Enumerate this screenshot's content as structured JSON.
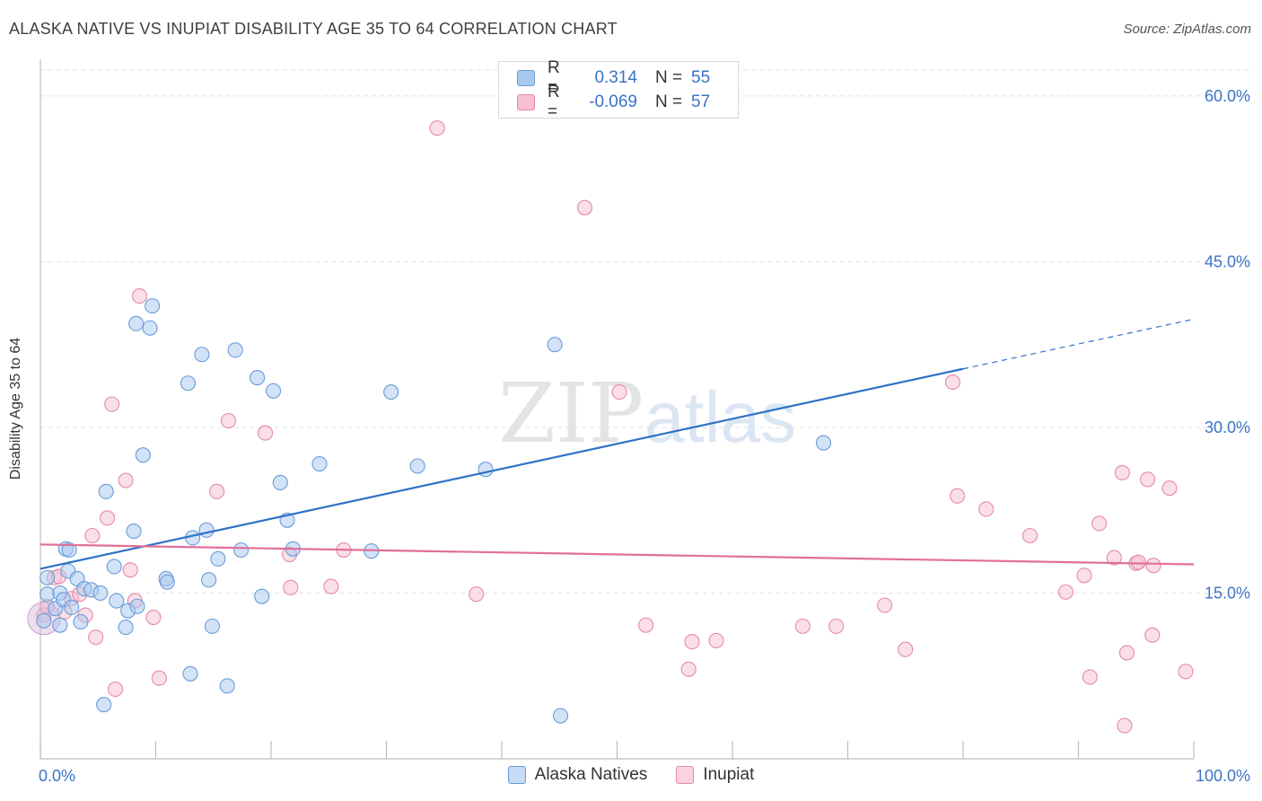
{
  "title": "ALASKA NATIVE VS INUPIAT DISABILITY AGE 35 TO 64 CORRELATION CHART",
  "source": "Source: ZipAtlas.com",
  "watermark": {
    "part1": "ZIP",
    "part2": "atlas"
  },
  "legend_box": {
    "rows": [
      {
        "r_label": "R =",
        "r_value": "0.314",
        "n_label": "N =",
        "n_value": "55",
        "color": "#a8c8f0",
        "border": "#6a9bd8"
      },
      {
        "r_label": "R =",
        "r_value": "-0.069",
        "n_label": "N =",
        "n_value": "57",
        "color": "#f8c0d0",
        "border": "#e48aa6"
      }
    ]
  },
  "bottom_legend": [
    {
      "label": "Alaska Natives",
      "color": "#a8c8f0",
      "border": "#6a9bd8"
    },
    {
      "label": "Inupiat",
      "color": "#f8c0d0",
      "border": "#e48aa6"
    }
  ],
  "chart_data": {
    "type": "scatter",
    "title": "ALASKA NATIVE VS INUPIAT DISABILITY AGE 35 TO 64 CORRELATION CHART",
    "xlabel": "",
    "ylabel": "Disability Age 35 to 64",
    "xlim": [
      0,
      100
    ],
    "ylim": [
      0,
      63
    ],
    "x_tick_labels": [
      {
        "value": 0,
        "label": "0.0%"
      },
      {
        "value": 100,
        "label": "100.0%"
      }
    ],
    "y_tick_labels": [
      {
        "value": 15,
        "label": "15.0%"
      },
      {
        "value": 30,
        "label": "30.0%"
      },
      {
        "value": 45,
        "label": "45.0%"
      },
      {
        "value": 60,
        "label": "60.0%"
      }
    ],
    "grid": "horizontal dashed",
    "series": [
      {
        "name": "Alaska Natives",
        "color": "#a8c8f0",
        "stroke": "#6a9bd8",
        "line_color": "#2e72c8",
        "trend": {
          "x0": 0,
          "y0": 17.2,
          "x1": 80,
          "y1": 35.3,
          "dash_to_x": 100,
          "dash_to_y": 39.8
        },
        "points": [
          [
            0.6,
            16.4
          ],
          [
            0.6,
            14.9
          ],
          [
            1.3,
            13.6
          ],
          [
            1.7,
            12.1
          ],
          [
            1.7,
            15.0
          ],
          [
            2.0,
            14.4
          ],
          [
            2.2,
            19.0
          ],
          [
            2.4,
            17.0
          ],
          [
            2.5,
            18.9
          ],
          [
            2.7,
            13.7
          ],
          [
            3.2,
            16.3
          ],
          [
            3.5,
            12.4
          ],
          [
            3.8,
            15.4
          ],
          [
            4.4,
            15.3
          ],
          [
            5.2,
            15.0
          ],
          [
            5.5,
            4.9
          ],
          [
            5.7,
            24.2
          ],
          [
            6.4,
            17.4
          ],
          [
            6.6,
            14.3
          ],
          [
            7.4,
            11.9
          ],
          [
            7.6,
            13.4
          ],
          [
            8.1,
            20.6
          ],
          [
            8.3,
            39.4
          ],
          [
            8.4,
            13.8
          ],
          [
            8.9,
            27.5
          ],
          [
            9.5,
            39.0
          ],
          [
            9.7,
            41.0
          ],
          [
            10.9,
            16.3
          ],
          [
            11.0,
            16.0
          ],
          [
            12.8,
            34.0
          ],
          [
            13.0,
            7.7
          ],
          [
            13.2,
            20.0
          ],
          [
            14.0,
            36.6
          ],
          [
            14.4,
            20.7
          ],
          [
            14.6,
            16.2
          ],
          [
            14.9,
            12.0
          ],
          [
            15.4,
            18.1
          ],
          [
            16.2,
            6.6
          ],
          [
            16.9,
            37.0
          ],
          [
            17.4,
            18.9
          ],
          [
            18.8,
            34.5
          ],
          [
            19.2,
            14.7
          ],
          [
            20.2,
            33.3
          ],
          [
            20.8,
            25.0
          ],
          [
            21.4,
            21.6
          ],
          [
            21.9,
            19.0
          ],
          [
            24.2,
            26.7
          ],
          [
            28.7,
            18.8
          ],
          [
            30.4,
            33.2
          ],
          [
            32.7,
            26.5
          ],
          [
            38.6,
            26.2
          ],
          [
            44.6,
            37.5
          ],
          [
            45.1,
            3.9
          ],
          [
            67.9,
            28.6
          ],
          [
            0.3,
            12.5
          ]
        ]
      },
      {
        "name": "Inupiat",
        "color": "#f8c0d0",
        "stroke": "#e48aa6",
        "line_color": "#e0709a",
        "trend": {
          "x0": 0,
          "y0": 19.4,
          "x1": 100,
          "y1": 17.6
        },
        "points": [
          [
            0.3,
            13.0
          ],
          [
            0.6,
            13.8
          ],
          [
            1.2,
            16.4
          ],
          [
            1.6,
            16.5
          ],
          [
            2.1,
            13.3
          ],
          [
            2.7,
            14.5
          ],
          [
            3.4,
            14.9
          ],
          [
            3.9,
            13.0
          ],
          [
            4.5,
            20.2
          ],
          [
            4.8,
            11.0
          ],
          [
            5.8,
            21.8
          ],
          [
            6.2,
            32.1
          ],
          [
            6.5,
            6.3
          ],
          [
            7.4,
            25.2
          ],
          [
            7.8,
            17.1
          ],
          [
            8.2,
            14.3
          ],
          [
            8.6,
            41.9
          ],
          [
            9.8,
            12.8
          ],
          [
            10.3,
            7.3
          ],
          [
            15.3,
            24.2
          ],
          [
            16.3,
            30.6
          ],
          [
            19.5,
            29.5
          ],
          [
            21.6,
            18.5
          ],
          [
            21.7,
            15.5
          ],
          [
            25.2,
            15.6
          ],
          [
            26.3,
            18.9
          ],
          [
            34.4,
            57.1
          ],
          [
            37.8,
            14.9
          ],
          [
            47.2,
            49.9
          ],
          [
            50.2,
            33.2
          ],
          [
            52.5,
            12.1
          ],
          [
            56.2,
            8.1
          ],
          [
            56.5,
            10.6
          ],
          [
            58.6,
            10.7
          ],
          [
            66.1,
            12.0
          ],
          [
            69.0,
            12.0
          ],
          [
            73.2,
            13.9
          ],
          [
            75.0,
            9.9
          ],
          [
            79.1,
            34.1
          ],
          [
            79.5,
            23.8
          ],
          [
            82.0,
            22.6
          ],
          [
            85.8,
            20.2
          ],
          [
            88.9,
            15.1
          ],
          [
            90.5,
            16.6
          ],
          [
            91.0,
            7.4
          ],
          [
            91.8,
            21.3
          ],
          [
            93.1,
            18.2
          ],
          [
            93.8,
            25.9
          ],
          [
            94.0,
            3.0
          ],
          [
            94.2,
            9.6
          ],
          [
            95.0,
            17.7
          ],
          [
            95.2,
            17.8
          ],
          [
            96.0,
            25.3
          ],
          [
            96.4,
            11.2
          ],
          [
            96.5,
            17.5
          ],
          [
            97.9,
            24.5
          ],
          [
            99.3,
            7.9
          ]
        ]
      }
    ]
  }
}
